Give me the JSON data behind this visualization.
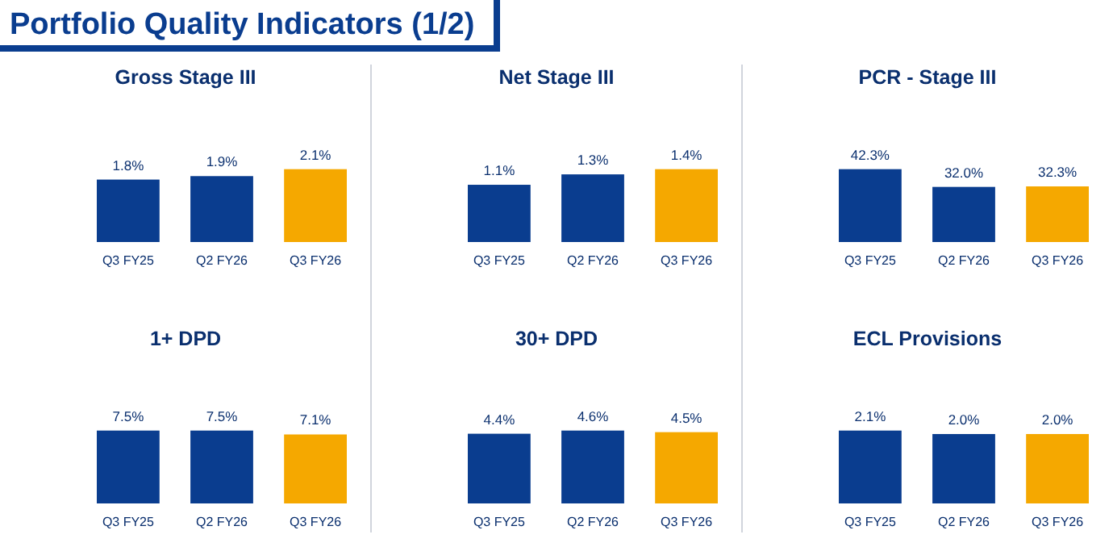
{
  "chart_data": [
    {
      "type": "other",
      "title": "Portfolio Quality Indicators (1/2)"
    },
    {
      "type": "bar",
      "title": "Gross Stage III",
      "categories": [
        "Q3 FY25",
        "Q2 FY26",
        "Q3 FY26"
      ],
      "values": [
        1.8,
        1.9,
        2.1
      ],
      "value_labels": [
        "1.8%",
        "1.9%",
        "2.1%"
      ],
      "colors": [
        "#0a3d8f",
        "#0a3d8f",
        "#f5a800"
      ],
      "tick_labels": "x"
    },
    {
      "type": "bar",
      "title": "Net Stage III",
      "categories": [
        "Q3 FY25",
        "Q2 FY26",
        "Q3 FY26"
      ],
      "values": [
        1.1,
        1.3,
        1.4
      ],
      "value_labels": [
        "1.1%",
        "1.3%",
        "1.4%"
      ],
      "colors": [
        "#0a3d8f",
        "#0a3d8f",
        "#f5a800"
      ],
      "tick_labels": "x"
    },
    {
      "type": "bar",
      "title": "PCR - Stage III",
      "categories": [
        "Q3 FY25",
        "Q2 FY26",
        "Q3 FY26"
      ],
      "values": [
        42.3,
        32.0,
        32.3
      ],
      "value_labels": [
        "42.3%",
        "32.0%",
        "32.3%"
      ],
      "colors": [
        "#0a3d8f",
        "#0a3d8f",
        "#f5a800"
      ],
      "tick_labels": "x"
    },
    {
      "type": "bar",
      "title": "1+ DPD",
      "categories": [
        "Q3 FY25",
        "Q2 FY26",
        "Q3 FY26"
      ],
      "values": [
        7.5,
        7.5,
        7.1
      ],
      "value_labels": [
        "7.5%",
        "7.5%",
        "7.1%"
      ],
      "colors": [
        "#0a3d8f",
        "#0a3d8f",
        "#f5a800"
      ],
      "tick_labels": "x"
    },
    {
      "type": "bar",
      "title": "30+ DPD",
      "categories": [
        "Q3 FY25",
        "Q2 FY26",
        "Q3 FY26"
      ],
      "values": [
        4.4,
        4.6,
        4.5
      ],
      "value_labels": [
        "4.4%",
        "4.6%",
        "4.5%"
      ],
      "colors": [
        "#0a3d8f",
        "#0a3d8f",
        "#f5a800"
      ],
      "tick_labels": "x"
    },
    {
      "type": "bar",
      "title": "ECL Provisions",
      "categories": [
        "Q3 FY25",
        "Q2 FY26",
        "Q3 FY26"
      ],
      "values": [
        2.1,
        2.0,
        2.0
      ],
      "value_labels": [
        "2.1%",
        "2.0%",
        "2.0%"
      ],
      "colors": [
        "#0a3d8f",
        "#0a3d8f",
        "#f5a800"
      ],
      "tick_labels": "x"
    }
  ]
}
